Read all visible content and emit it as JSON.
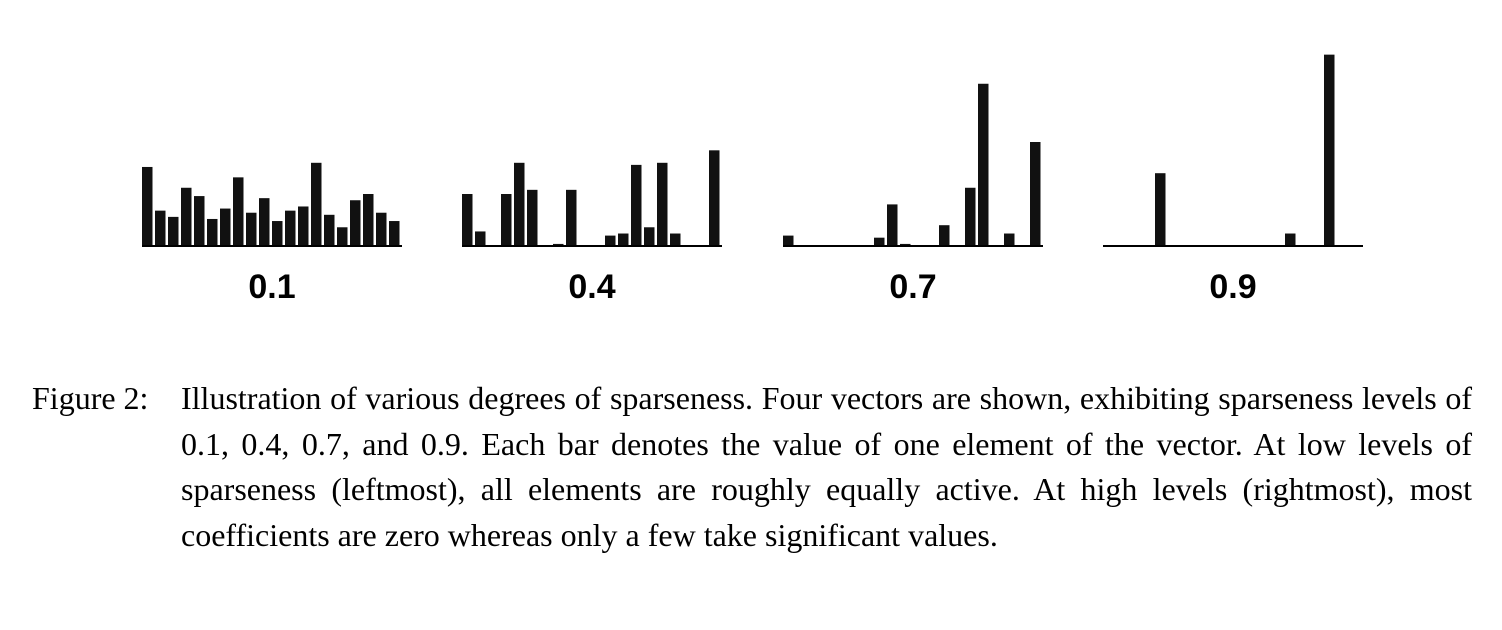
{
  "chart_data": [
    {
      "type": "bar",
      "label": "0.1",
      "values": [
        0.38,
        0.17,
        0.14,
        0.28,
        0.24,
        0.13,
        0.18,
        0.33,
        0.16,
        0.23,
        0.12,
        0.17,
        0.19,
        0.4,
        0.15,
        0.09,
        0.22,
        0.25,
        0.16,
        0.12
      ]
    },
    {
      "type": "bar",
      "label": "0.4",
      "values": [
        0.25,
        0.07,
        0.0,
        0.25,
        0.4,
        0.27,
        0.0,
        0.01,
        0.27,
        0.0,
        0.0,
        0.05,
        0.06,
        0.39,
        0.09,
        0.4,
        0.06,
        0.0,
        0.0,
        0.46
      ]
    },
    {
      "type": "bar",
      "label": "0.7",
      "values": [
        0.05,
        0.0,
        0.0,
        0.0,
        0.0,
        0.0,
        0.0,
        0.04,
        0.2,
        0.01,
        0.0,
        0.0,
        0.1,
        0.0,
        0.28,
        0.78,
        0.0,
        0.06,
        0.0,
        0.5
      ]
    },
    {
      "type": "bar",
      "label": "0.9",
      "values": [
        0.0,
        0.0,
        0.0,
        0.0,
        0.35,
        0.0,
        0.0,
        0.0,
        0.0,
        0.0,
        0.0,
        0.0,
        0.0,
        0.0,
        0.06,
        0.0,
        0.0,
        0.92,
        0.0,
        0.0
      ]
    }
  ],
  "caption": {
    "label": "Figure 2:",
    "text": "Illustration of various degrees of sparseness. Four vectors are shown, exhibiting sparse­ness levels of 0.1, 0.4, 0.7, and 0.9. Each bar denotes the value of one element of the vector. At low levels of sparseness (leftmost), all elements are roughly equally active. At high levels (rightmost), most coefficients are zero whereas only a few take significant values."
  }
}
